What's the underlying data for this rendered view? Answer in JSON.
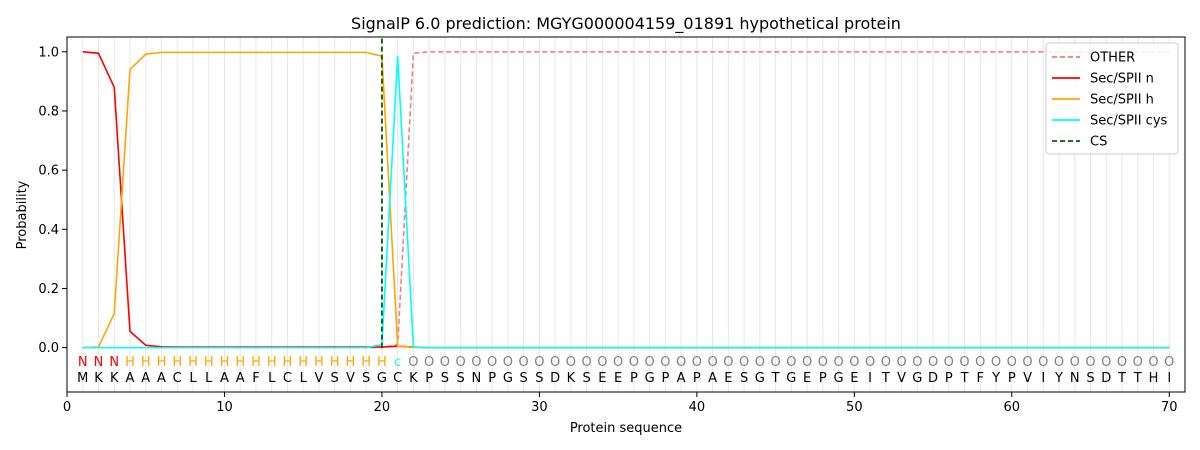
{
  "chart_data": {
    "type": "line",
    "title": "SignalP 6.0 prediction: MGYG000004159_01891 hypothetical protein",
    "xlabel": "Protein sequence",
    "ylabel": "Probability",
    "xlim": [
      0,
      71
    ],
    "ylim": [
      -0.15,
      1.05
    ],
    "xticks": [
      0,
      10,
      20,
      30,
      40,
      50,
      60,
      70
    ],
    "yticks": [
      "0.0",
      "0.2",
      "0.4",
      "0.6",
      "0.8",
      "1.0"
    ],
    "grid": "vertical lines at each residue",
    "legend_position": "top-right",
    "sequence": [
      "M",
      "K",
      "K",
      "A",
      "A",
      "A",
      "C",
      "L",
      "L",
      "A",
      "A",
      "F",
      "L",
      "C",
      "L",
      "V",
      "S",
      "V",
      "S",
      "G",
      "C",
      "K",
      "P",
      "S",
      "S",
      "N",
      "P",
      "G",
      "S",
      "S",
      "D",
      "K",
      "S",
      "E",
      "E",
      "P",
      "G",
      "P",
      "A",
      "P",
      "A",
      "E",
      "S",
      "G",
      "T",
      "G",
      "E",
      "P",
      "G",
      "E",
      "I",
      "T",
      "V",
      "G",
      "D",
      "P",
      "T",
      "F",
      "Y",
      "P",
      "V",
      "I",
      "Y",
      "N",
      "S",
      "D",
      "T",
      "T",
      "H",
      "I"
    ],
    "labels": [
      "N",
      "N",
      "N",
      "H",
      "H",
      "H",
      "H",
      "H",
      "H",
      "H",
      "H",
      "H",
      "H",
      "H",
      "H",
      "H",
      "H",
      "H",
      "H",
      "H",
      "c",
      "O",
      "O",
      "O",
      "O",
      "O",
      "O",
      "O",
      "O",
      "O",
      "O",
      "O",
      "O",
      "O",
      "O",
      "O",
      "O",
      "O",
      "O",
      "O",
      "O",
      "O",
      "O",
      "O",
      "O",
      "O",
      "O",
      "O",
      "O",
      "O",
      "O",
      "O",
      "O",
      "O",
      "O",
      "O",
      "O",
      "O",
      "O",
      "O",
      "O",
      "O",
      "O",
      "O",
      "O",
      "O",
      "O",
      "O",
      "O",
      "O"
    ],
    "label_colors": {
      "N": "#ff0000",
      "H": "#ffa500",
      "c": "#00ffff",
      "O": "#808080"
    },
    "series": [
      {
        "name": "OTHER",
        "color": "#f08080",
        "dash": true,
        "values": [
          0,
          0,
          0,
          0,
          0,
          0,
          0,
          0,
          0,
          0,
          0,
          0,
          0,
          0,
          0,
          0,
          0,
          0,
          0,
          0,
          0.01,
          0.995,
          1,
          1,
          1,
          1,
          1,
          1,
          1,
          1,
          1,
          1,
          1,
          1,
          1,
          1,
          1,
          1,
          1,
          1,
          1,
          1,
          1,
          1,
          1,
          1,
          1,
          1,
          1,
          1,
          1,
          1,
          1,
          1,
          1,
          1,
          1,
          1,
          1,
          1,
          1,
          1,
          1,
          1,
          1,
          1,
          1,
          1,
          1,
          1
        ]
      },
      {
        "name": "Sec/SPII n",
        "color": "#ff0000",
        "dash": false,
        "values": [
          1.0,
          0.995,
          0.88,
          0.055,
          0.008,
          0.003,
          0.002,
          0.002,
          0.002,
          0.002,
          0.002,
          0.002,
          0.002,
          0.002,
          0.002,
          0.002,
          0.002,
          0.002,
          0.002,
          0.002,
          0.005,
          0.002,
          0,
          0,
          0,
          0,
          0,
          0,
          0,
          0,
          0,
          0,
          0,
          0,
          0,
          0,
          0,
          0,
          0,
          0,
          0,
          0,
          0,
          0,
          0,
          0,
          0,
          0,
          0,
          0,
          0,
          0,
          0,
          0,
          0,
          0,
          0,
          0,
          0,
          0,
          0,
          0,
          0,
          0,
          0,
          0,
          0,
          0,
          0,
          0
        ]
      },
      {
        "name": "Sec/SPII h",
        "color": "#ffa500",
        "dash": false,
        "values": [
          0,
          0.002,
          0.115,
          0.94,
          0.992,
          0.998,
          0.998,
          0.998,
          0.998,
          0.998,
          0.998,
          0.998,
          0.998,
          0.998,
          0.998,
          0.998,
          0.998,
          0.998,
          0.998,
          0.985,
          0.005,
          0.001,
          0,
          0,
          0,
          0,
          0,
          0,
          0,
          0,
          0,
          0,
          0,
          0,
          0,
          0,
          0,
          0,
          0,
          0,
          0,
          0,
          0,
          0,
          0,
          0,
          0,
          0,
          0,
          0,
          0,
          0,
          0,
          0,
          0,
          0,
          0,
          0,
          0,
          0,
          0,
          0,
          0,
          0,
          0,
          0,
          0,
          0,
          0,
          0
        ]
      },
      {
        "name": "Sec/SPII cys",
        "color": "#00ffff",
        "dash": false,
        "values": [
          0,
          0,
          0,
          0,
          0,
          0,
          0,
          0,
          0,
          0,
          0,
          0,
          0,
          0,
          0,
          0,
          0,
          0,
          0,
          0.01,
          0.985,
          0.002,
          0,
          0,
          0,
          0,
          0,
          0,
          0,
          0,
          0,
          0,
          0,
          0,
          0,
          0,
          0,
          0,
          0,
          0,
          0,
          0,
          0,
          0,
          0,
          0,
          0,
          0,
          0,
          0,
          0,
          0,
          0,
          0,
          0,
          0,
          0,
          0,
          0,
          0,
          0,
          0,
          0,
          0,
          0,
          0,
          0,
          0,
          0,
          0
        ]
      },
      {
        "name": "CS",
        "color": "#006400",
        "dash": true,
        "vertical_x": 20
      }
    ]
  }
}
